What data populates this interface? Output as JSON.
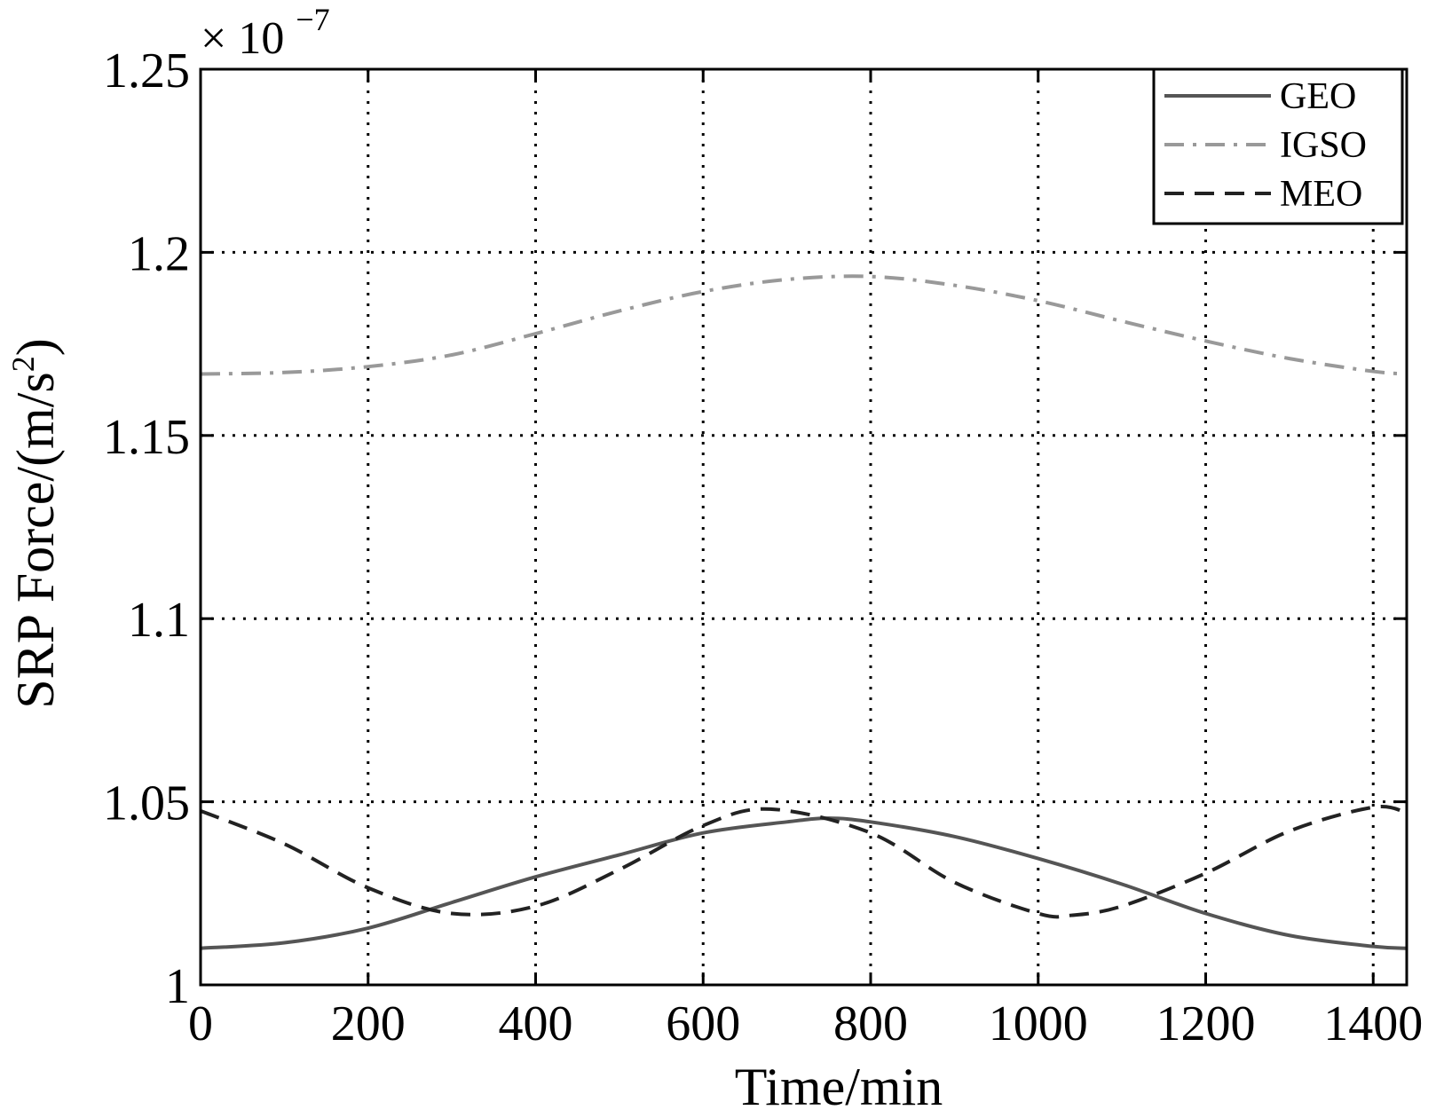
{
  "chart_data": {
    "type": "line",
    "title": "",
    "xlabel": "Time/min",
    "ylabel_main": "SRP Force/(m/s",
    "ylabel_sup": "2",
    "ylabel_close": ")",
    "y_multiplier": {
      "base": "× 10",
      "exponent": "−7"
    },
    "xlim": [
      0,
      1440
    ],
    "ylim": [
      1.0,
      1.25
    ],
    "xticks": [
      0,
      200,
      400,
      600,
      800,
      1000,
      1200,
      1400
    ],
    "xtick_labels": [
      "0",
      "200",
      "400",
      "600",
      "800",
      "1000",
      "1200",
      "1400"
    ],
    "yticks": [
      1.0,
      1.05,
      1.1,
      1.15,
      1.2,
      1.25
    ],
    "ytick_labels": [
      "1",
      "1.05",
      "1.1",
      "1.15",
      "1.2",
      "1.25"
    ],
    "grid": true,
    "legend_position": "top-right",
    "series": [
      {
        "name": "GEO",
        "color": "#555555",
        "style": "solid",
        "x": [
          0,
          100,
          200,
          300,
          400,
          500,
          600,
          700,
          750,
          800,
          900,
          1000,
          1100,
          1200,
          1300,
          1400,
          1440
        ],
        "y": [
          1.01,
          1.0115,
          1.0155,
          1.0225,
          1.0295,
          1.0355,
          1.0415,
          1.0445,
          1.0455,
          1.0445,
          1.0405,
          1.0345,
          1.0275,
          1.0195,
          1.0135,
          1.0105,
          1.01
        ]
      },
      {
        "name": "IGSO",
        "color": "#999999",
        "style": "dashdot",
        "x": [
          0,
          100,
          200,
          300,
          400,
          500,
          600,
          700,
          800,
          900,
          1000,
          1100,
          1200,
          1300,
          1400,
          1440
        ],
        "y": [
          1.1668,
          1.1672,
          1.1688,
          1.172,
          1.1778,
          1.184,
          1.1893,
          1.1926,
          1.1934,
          1.191,
          1.1868,
          1.1812,
          1.1758,
          1.171,
          1.1675,
          1.1668
        ]
      },
      {
        "name": "MEO",
        "color": "#222222",
        "style": "dashed",
        "x": [
          0,
          100,
          200,
          300,
          400,
          500,
          600,
          680,
          800,
          900,
          1000,
          1040,
          1100,
          1200,
          1300,
          1400,
          1440
        ],
        "y": [
          1.0475,
          1.0385,
          1.0265,
          1.0195,
          1.0215,
          1.0315,
          1.0435,
          1.048,
          1.0415,
          1.028,
          1.0195,
          1.019,
          1.0215,
          1.0305,
          1.042,
          1.0485,
          1.047
        ]
      }
    ]
  }
}
